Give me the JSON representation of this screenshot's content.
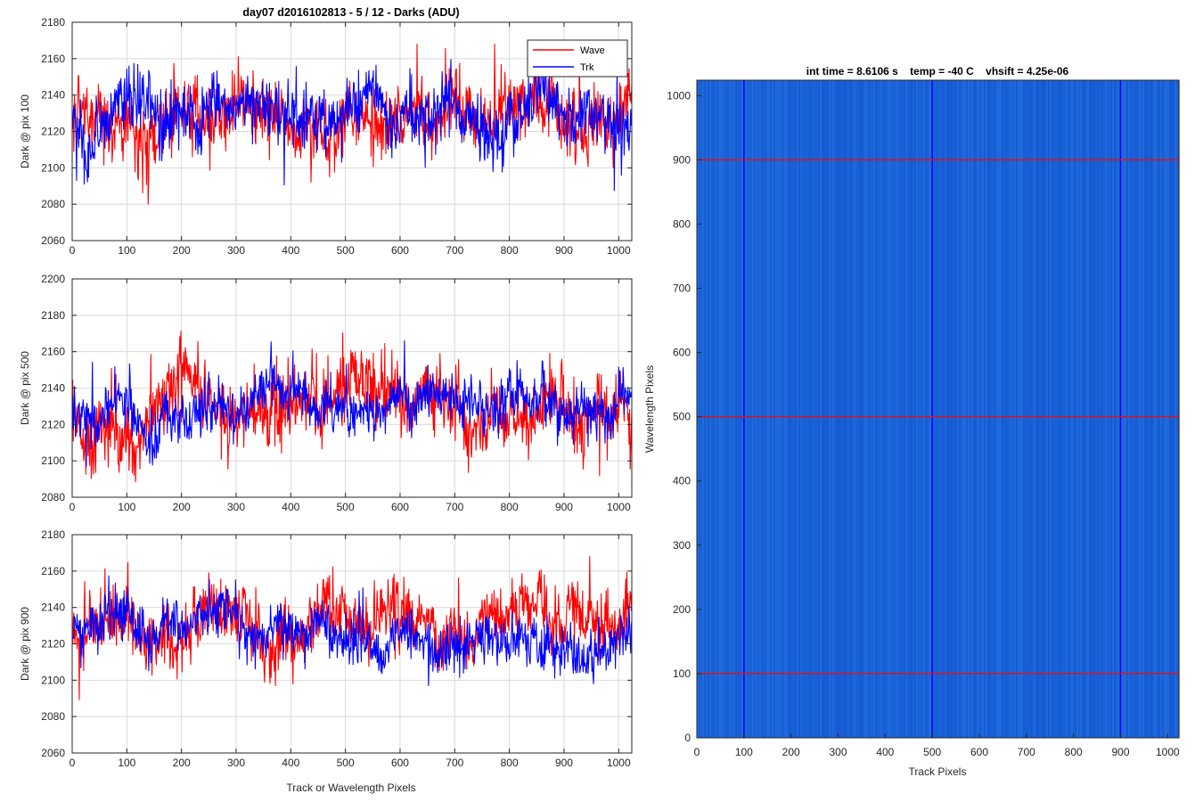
{
  "figure_title": "day07 d2016102813 - 5 / 12 - Darks (ADU)",
  "colors": {
    "wave": "#ff0000",
    "trk": "#0000ff",
    "image_bg": "#1a64d8",
    "grid": "#d9d9d9",
    "axis": "#262626"
  },
  "chart_data": [
    {
      "type": "line",
      "id": "pix100",
      "ylabel": "Dark @ pix 100",
      "ylim": [
        2060,
        2180
      ],
      "yticks": [
        2060,
        2080,
        2100,
        2120,
        2140,
        2160,
        2180
      ],
      "xlim": [
        0,
        1024
      ],
      "xticks": [
        0,
        100,
        200,
        300,
        400,
        500,
        600,
        700,
        800,
        900,
        1000
      ],
      "grid": true,
      "legend": {
        "position": "top-right",
        "entries": [
          "Wave",
          "Trk"
        ]
      },
      "series": [
        {
          "name": "Wave",
          "mean": 2128,
          "noise": 11,
          "min": 2080,
          "max": 2168
        },
        {
          "name": "Trk",
          "mean": 2122,
          "noise": 10,
          "min": 2071,
          "max": 2164
        }
      ]
    },
    {
      "type": "line",
      "id": "pix500",
      "ylabel": "Dark @ pix 500",
      "ylim": [
        2080,
        2200
      ],
      "yticks": [
        2080,
        2100,
        2120,
        2140,
        2160,
        2180,
        2200
      ],
      "xlim": [
        0,
        1024
      ],
      "xticks": [
        0,
        100,
        200,
        300,
        400,
        500,
        600,
        700,
        800,
        900,
        1000
      ],
      "grid": true,
      "series": [
        {
          "name": "Wave",
          "mean": 2127,
          "noise": 11,
          "min": 2080,
          "max": 2181
        },
        {
          "name": "Trk",
          "mean": 2127,
          "noise": 8,
          "min": 2083,
          "max": 2166
        }
      ]
    },
    {
      "type": "line",
      "id": "pix900",
      "ylabel": "Dark @ pix 900",
      "xlabel": "Track or Wavelength Pixels",
      "ylim": [
        2060,
        2180
      ],
      "yticks": [
        2060,
        2080,
        2100,
        2120,
        2140,
        2160,
        2180
      ],
      "xlim": [
        0,
        1024
      ],
      "xticks": [
        0,
        100,
        200,
        300,
        400,
        500,
        600,
        700,
        800,
        900,
        1000
      ],
      "grid": true,
      "series": [
        {
          "name": "Wave",
          "mean": 2128,
          "noise": 10,
          "min": 2078,
          "max": 2168
        },
        {
          "name": "Trk",
          "mean": 2126,
          "noise": 8,
          "min": 2097,
          "max": 2170
        }
      ]
    },
    {
      "type": "heatmap",
      "id": "dark-image",
      "title": "int time = 8.6106 s    temp = -40 C    vhsift = 4.25e-06",
      "xlabel": "Track Pixels",
      "ylabel": "Wavelength Pixels",
      "xlim": [
        0,
        1024
      ],
      "ylim": [
        0,
        1024
      ],
      "xticks": [
        0,
        100,
        200,
        300,
        400,
        500,
        600,
        700,
        800,
        900,
        1000
      ],
      "yticks": [
        0,
        100,
        200,
        300,
        400,
        500,
        600,
        700,
        800,
        900,
        1000
      ],
      "vertical_markers": [
        100,
        500,
        900
      ],
      "horizontal_markers": [
        100,
        500,
        900
      ]
    }
  ]
}
